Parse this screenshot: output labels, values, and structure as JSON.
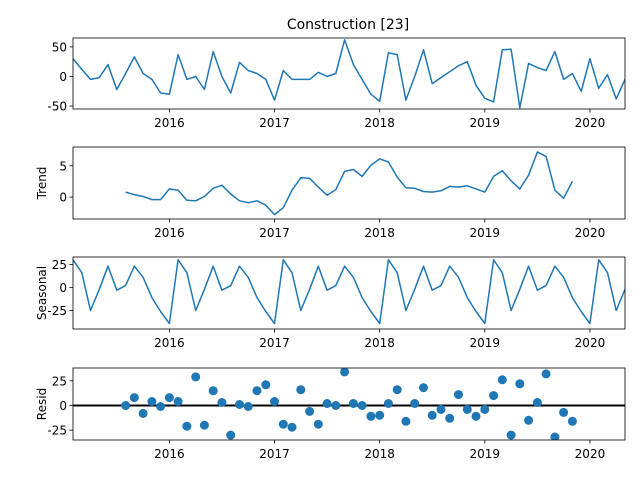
{
  "figure_title": "Construction  [23]",
  "colors": {
    "line": "#1f77b4",
    "axis": "#000000",
    "zero_line": "#000000"
  },
  "chart_data": [
    {
      "id": "observed",
      "type": "line",
      "ylabel": "",
      "x_start": 2015.0833,
      "x_step": 0.08333,
      "xlim": [
        2015.0833,
        2020.3333
      ],
      "ylim": [
        -55,
        65
      ],
      "yticks": [
        -50,
        0,
        50
      ],
      "xticks": [
        2016,
        2017,
        2018,
        2019,
        2020
      ],
      "values": [
        30,
        12,
        -5,
        -2,
        20,
        -22,
        5,
        33,
        5,
        -5,
        -28,
        -30,
        37,
        -5,
        0,
        -22,
        42,
        0,
        -28,
        24,
        10,
        5,
        -5,
        -40,
        10,
        -5,
        -5,
        -5,
        7,
        0,
        5,
        62,
        20,
        -5,
        -30,
        -42,
        40,
        37,
        -40,
        0,
        45,
        -12,
        -2,
        8,
        18,
        25,
        -15,
        -37,
        -43,
        45,
        46,
        -53,
        22,
        15,
        10,
        42,
        -5,
        5,
        -25,
        30,
        -20,
        3,
        -38,
        -5,
        38
      ]
    },
    {
      "id": "trend",
      "type": "line",
      "ylabel": "Trend",
      "x_start": 2015.5833,
      "x_step": 0.08333,
      "xlim": [
        2015.0833,
        2020.3333
      ],
      "ylim": [
        -3.5,
        8
      ],
      "yticks": [
        0,
        5
      ],
      "xticks": [
        2016,
        2017,
        2018,
        2019,
        2020
      ],
      "values": [
        0.8,
        0.4,
        0.1,
        -0.4,
        -0.4,
        1.3,
        1.1,
        -0.5,
        -0.6,
        0.1,
        1.4,
        1.9,
        0.5,
        -0.6,
        -0.9,
        -0.6,
        -1.3,
        -2.8,
        -1.7,
        1.1,
        3.1,
        3.0,
        1.6,
        0.3,
        1.2,
        4.1,
        4.4,
        3.3,
        5.1,
        6.1,
        5.6,
        3.2,
        1.5,
        1.4,
        0.9,
        0.8,
        1.0,
        1.7,
        1.6,
        1.8,
        1.3,
        0.8,
        3.3,
        4.2,
        2.6,
        1.3,
        3.5,
        7.2,
        6.5,
        1.1,
        -0.2,
        2.5
      ]
    },
    {
      "id": "seasonal",
      "type": "line",
      "ylabel": "Seasonal",
      "x_start": 2015.0833,
      "x_step": 0.08333,
      "xlim": [
        2015.0833,
        2020.3333
      ],
      "ylim": [
        -45,
        33
      ],
      "yticks": [
        -25,
        0,
        25
      ],
      "xticks": [
        2016,
        2017,
        2018,
        2019,
        2020
      ],
      "values": [
        30,
        16,
        -25,
        -2,
        23,
        -3,
        2,
        23,
        11,
        -11,
        -26,
        -39,
        30,
        16,
        -25,
        -2,
        23,
        -3,
        2,
        23,
        11,
        -11,
        -26,
        -39,
        30,
        16,
        -25,
        -2,
        23,
        -3,
        2,
        23,
        11,
        -11,
        -26,
        -39,
        30,
        16,
        -25,
        -2,
        23,
        -3,
        2,
        23,
        11,
        -11,
        -26,
        -39,
        30,
        16,
        -25,
        -2,
        23,
        -3,
        2,
        23,
        11,
        -11,
        -26,
        -39,
        30,
        16,
        -25,
        -2,
        23
      ]
    },
    {
      "id": "resid",
      "type": "scatter",
      "ylabel": "Resid",
      "x_start": 2015.5833,
      "x_step": 0.08333,
      "xlim": [
        2015.0833,
        2020.3333
      ],
      "ylim": [
        -35,
        38
      ],
      "yticks": [
        -25,
        0,
        25
      ],
      "xticks": [
        2016,
        2017,
        2018,
        2019,
        2020
      ],
      "zero_line": 0,
      "values": [
        0,
        8,
        -8,
        4,
        -1,
        8,
        4,
        -21,
        29,
        -20,
        15,
        3,
        -30,
        1,
        -1,
        15,
        21,
        4,
        -19,
        -22,
        16,
        -6,
        -19,
        2,
        0,
        34,
        2,
        0,
        -11,
        -10,
        2,
        16,
        -16,
        2,
        18,
        -10,
        -4,
        -13,
        11,
        -4,
        -11,
        -4,
        10,
        26,
        -30,
        22,
        -15,
        3,
        32,
        -32,
        -7,
        -16
      ]
    }
  ]
}
